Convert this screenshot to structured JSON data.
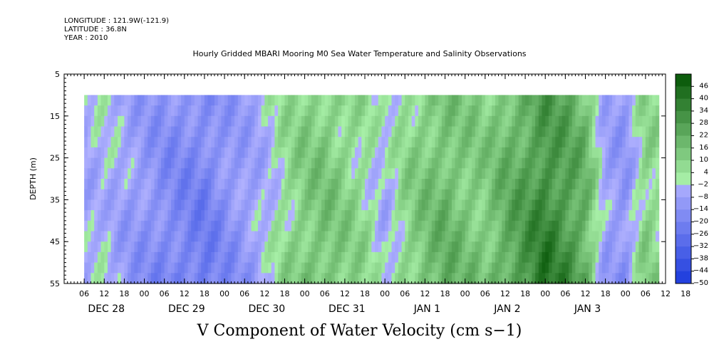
{
  "header": {
    "longitude": "LONGITUDE : 121.9W(-121.9)",
    "latitude": "LATITUDE : 36.8N",
    "year": "YEAR : 2010",
    "title": "Hourly Gridded MBARI Mooring M0 Sea Water Temperature and Salinity Observations"
  },
  "chart_data": {
    "type": "heatmap",
    "title": "Hourly Gridded MBARI Mooring M0 Sea Water Temperature and Salinity Observations",
    "variable": "V Component of Water Velocity (cm s-1)",
    "xlabel": "",
    "ylabel": "DEPTH (m)",
    "y_range": [
      5,
      55
    ],
    "y_ticks": [
      5,
      15,
      25,
      35,
      45,
      55
    ],
    "data_depth_range": [
      10,
      55
    ],
    "x_hour_labels": [
      "06",
      "12",
      "18",
      "00",
      "06",
      "12",
      "18",
      "00",
      "06",
      "12",
      "18",
      "00",
      "06",
      "12",
      "18",
      "00",
      "06",
      "12",
      "18",
      "00",
      "06",
      "12",
      "18",
      "00",
      "06",
      "12",
      "18",
      "00",
      "06",
      "12",
      "18"
    ],
    "x_day_labels": [
      "DEC 28",
      "DEC 29",
      "DEC 30",
      "DEC 31",
      "JAN  1",
      "JAN  2",
      "JAN  3"
    ],
    "time_range_hours": [
      0,
      180
    ],
    "data_time_range_hours": [
      6,
      178
    ],
    "colorbar": {
      "levels": [
        46,
        40,
        34,
        28,
        22,
        16,
        10,
        4,
        -2,
        -8,
        -14,
        -20,
        -26,
        -32,
        -38,
        -44,
        -50
      ],
      "min": -50,
      "max": 50
    },
    "v_profile": {
      "hours": [
        6,
        12,
        18,
        24,
        30,
        36,
        42,
        48,
        54,
        60,
        66,
        72,
        78,
        84,
        90,
        96,
        102,
        108,
        114,
        120,
        126,
        132,
        138,
        144,
        150,
        156,
        162,
        168,
        174,
        178
      ],
      "v": [
        -6,
        -2,
        -8,
        -12,
        -16,
        -18,
        -20,
        -14,
        -10,
        -4,
        6,
        12,
        14,
        10,
        6,
        -4,
        8,
        14,
        18,
        14,
        12,
        20,
        26,
        34,
        28,
        20,
        -8,
        -12,
        10,
        6
      ]
    }
  },
  "colors": {
    "background": "#ffffff",
    "negative_light": "#b4b4ff",
    "negative_dark": "#1a3adc",
    "positive_light": "#a8f0a8",
    "positive_dark": "#0a5a0a"
  },
  "bottom_title": "V Component of Water Velocity (cm s−1)"
}
